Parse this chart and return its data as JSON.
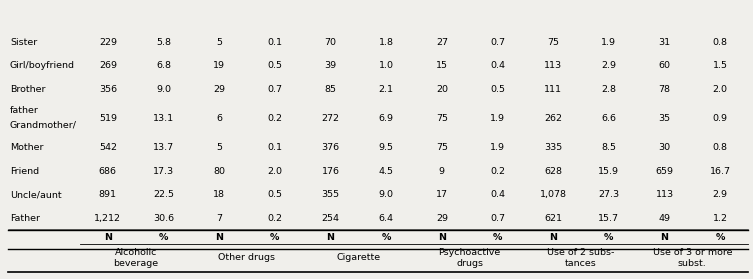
{
  "col_groups": [
    {
      "label": "Alcoholic\nbeverage"
    },
    {
      "label": "Other drugs"
    },
    {
      "label": "Cigarette"
    },
    {
      "label": "Psychoactive\ndrugs"
    },
    {
      "label": "Use of 2 subs-\ntances"
    },
    {
      "label": "Use of 3 or more\nsubst."
    }
  ],
  "rows": [
    {
      "label": "Father",
      "values": [
        "1,212",
        "30.6",
        "7",
        "0.2",
        "254",
        "6.4",
        "29",
        "0.7",
        "621",
        "15.7",
        "49",
        "1.2"
      ]
    },
    {
      "label": "Uncle/aunt",
      "values": [
        "891",
        "22.5",
        "18",
        "0.5",
        "355",
        "9.0",
        "17",
        "0.4",
        "1,078",
        "27.3",
        "113",
        "2.9"
      ]
    },
    {
      "label": "Friend",
      "values": [
        "686",
        "17.3",
        "80",
        "2.0",
        "176",
        "4.5",
        "9",
        "0.2",
        "628",
        "15.9",
        "659",
        "16.7"
      ]
    },
    {
      "label": "Mother",
      "values": [
        "542",
        "13.7",
        "5",
        "0.1",
        "376",
        "9.5",
        "75",
        "1.9",
        "335",
        "8.5",
        "30",
        "0.8"
      ]
    },
    {
      "label": "Grandmother/\nfather",
      "values": [
        "519",
        "13.1",
        "6",
        "0.2",
        "272",
        "6.9",
        "75",
        "1.9",
        "262",
        "6.6",
        "35",
        "0.9"
      ]
    },
    {
      "label": "Brother",
      "values": [
        "356",
        "9.0",
        "29",
        "0.7",
        "85",
        "2.1",
        "20",
        "0.5",
        "111",
        "2.8",
        "78",
        "2.0"
      ]
    },
    {
      "label": "Girl/boyfriend",
      "values": [
        "269",
        "6.8",
        "19",
        "0.5",
        "39",
        "1.0",
        "15",
        "0.4",
        "113",
        "2.9",
        "60",
        "1.5"
      ]
    },
    {
      "label": "Sister",
      "values": [
        "229",
        "5.8",
        "5",
        "0.1",
        "70",
        "1.8",
        "27",
        "0.7",
        "75",
        "1.9",
        "31",
        "0.8"
      ]
    }
  ],
  "bg_color": "#f0efeb",
  "font_size": 6.8,
  "header_font_size": 6.8
}
